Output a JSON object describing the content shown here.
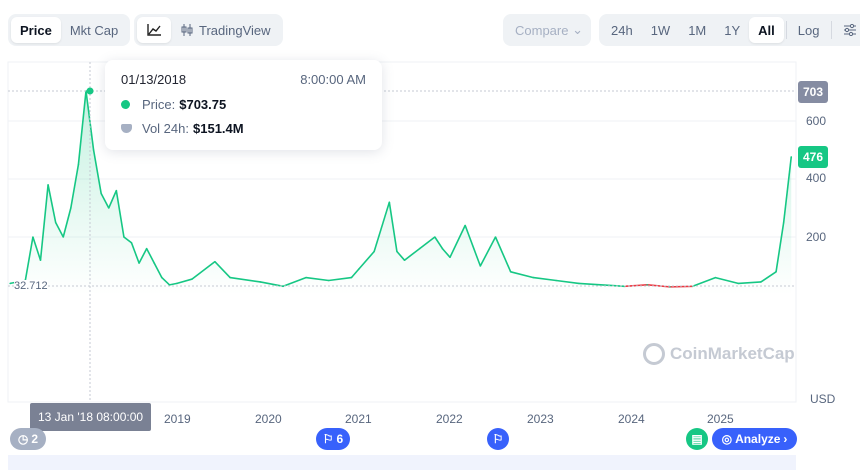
{
  "toolbar": {
    "metric_tabs": [
      {
        "label": "Price",
        "active": true
      },
      {
        "label": "Mkt Cap",
        "active": false
      }
    ],
    "chart_type": {
      "line_icon": "line-chart-icon",
      "tradingview_icon": "candlestick-icon",
      "tradingview_label": "TradingView"
    },
    "compare_label": "Compare",
    "ranges": [
      {
        "label": "24h"
      },
      {
        "label": "1W"
      },
      {
        "label": "1M"
      },
      {
        "label": "1Y"
      },
      {
        "label": "All",
        "active": true
      }
    ],
    "log_label": "Log",
    "settings_icon": "sliders-icon"
  },
  "tooltip": {
    "date": "01/13/2018",
    "time": "8:00:00 AM",
    "price_label": "Price:",
    "price": "$703.75",
    "vol_label": "Vol 24h:",
    "vol": "$151.4M"
  },
  "colors": {
    "up": "#16c784",
    "down": "#ea3943",
    "accent": "#3861fb",
    "crosshair_tag": "#858ca2"
  },
  "axis": {
    "y_ticks": [
      "600",
      "400",
      "200"
    ],
    "high_tag": "703",
    "current_tag": "476",
    "start_label": "32.712",
    "currency": "USD",
    "cursor_label": "13 Jan '18 08:00:00",
    "x_ticks": [
      "2019",
      "2020",
      "2021",
      "2022",
      "2023",
      "2024",
      "2025"
    ]
  },
  "watermark": "CoinMarketCap",
  "events": {
    "history_count": "2",
    "flag_count": "6",
    "analyze_label": "Analyze"
  },
  "chart_data": {
    "type": "area",
    "ylim": [
      0,
      760
    ],
    "baseline": 32.712,
    "x": [
      "2017-03",
      "2017-05",
      "2017-06",
      "2017-07",
      "2017-08",
      "2017-09",
      "2017-10",
      "2017-11",
      "2017-12",
      "2018-01",
      "2018-02",
      "2018-03",
      "2018-04",
      "2018-05",
      "2018-06",
      "2018-07",
      "2018-08",
      "2018-09",
      "2018-10",
      "2018-11",
      "2018-12",
      "2019-01",
      "2019-03",
      "2019-06",
      "2019-08",
      "2019-12",
      "2020-03",
      "2020-06",
      "2020-09",
      "2020-12",
      "2021-01",
      "2021-03",
      "2021-05",
      "2021-06",
      "2021-07",
      "2021-09",
      "2021-11",
      "2021-12",
      "2022-01",
      "2022-03",
      "2022-05",
      "2022-07",
      "2022-09",
      "2022-12",
      "2023-03",
      "2023-06",
      "2023-12",
      "2024-03",
      "2024-06",
      "2024-09",
      "2024-12",
      "2025-03",
      "2025-06",
      "2025-08",
      "2025-09",
      "2025-10"
    ],
    "values": [
      40,
      50,
      200,
      120,
      380,
      250,
      200,
      300,
      450,
      703.75,
      500,
      350,
      300,
      360,
      200,
      180,
      110,
      160,
      110,
      60,
      35,
      40,
      55,
      115,
      60,
      45,
      30,
      60,
      50,
      60,
      90,
      150,
      320,
      150,
      120,
      160,
      200,
      160,
      130,
      240,
      100,
      200,
      80,
      60,
      50,
      40,
      30,
      35,
      28,
      30,
      60,
      40,
      45,
      80,
      250,
      476
    ]
  }
}
